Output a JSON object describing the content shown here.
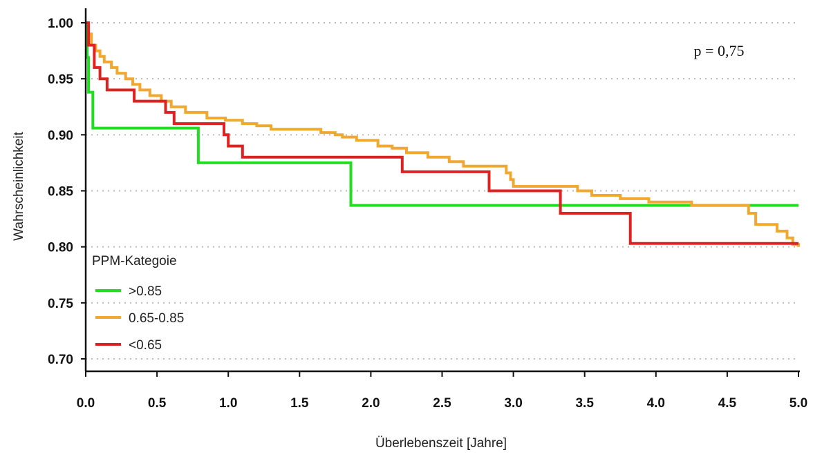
{
  "chart_data": {
    "type": "line",
    "subtype": "kaplan-meier step",
    "xlabel": "Überlebenszeit [Jahre]",
    "ylabel": "Wahrscheinlichkeit",
    "xlim": [
      0,
      5
    ],
    "ylim": [
      0.7,
      1.0
    ],
    "x_ticks": [
      "0.0",
      "0.5",
      "1.0",
      "1.5",
      "2.0",
      "2.5",
      "3.0",
      "3.5",
      "4.0",
      "4.5",
      "5.0"
    ],
    "y_ticks": [
      "0.70",
      "0.75",
      "0.80",
      "0.85",
      "0.90",
      "0.95",
      "1.00"
    ],
    "grid": "horizontal dotted",
    "annotation": "p = 0,75",
    "legend": {
      "title": "PPM-Kategoie",
      "placement": "bottom-left"
    },
    "series": [
      {
        "name": ">0.85",
        "color": "#22dd22",
        "points": [
          [
            0,
            1.0
          ],
          [
            0.01,
            0.969
          ],
          [
            0.02,
            0.938
          ],
          [
            0.05,
            0.906
          ],
          [
            0.79,
            0.875
          ],
          [
            1.86,
            0.837
          ],
          [
            5.0,
            0.837
          ]
        ]
      },
      {
        "name": "0.65-0.85",
        "color": "#f0a830",
        "points": [
          [
            0,
            1.0
          ],
          [
            0.02,
            0.99
          ],
          [
            0.04,
            0.98
          ],
          [
            0.07,
            0.975
          ],
          [
            0.1,
            0.97
          ],
          [
            0.13,
            0.965
          ],
          [
            0.18,
            0.96
          ],
          [
            0.22,
            0.955
          ],
          [
            0.28,
            0.95
          ],
          [
            0.33,
            0.945
          ],
          [
            0.38,
            0.94
          ],
          [
            0.45,
            0.935
          ],
          [
            0.53,
            0.93
          ],
          [
            0.6,
            0.925
          ],
          [
            0.7,
            0.92
          ],
          [
            0.85,
            0.915
          ],
          [
            0.98,
            0.913
          ],
          [
            1.1,
            0.91
          ],
          [
            1.2,
            0.908
          ],
          [
            1.3,
            0.905
          ],
          [
            1.65,
            0.902
          ],
          [
            1.75,
            0.9
          ],
          [
            1.8,
            0.898
          ],
          [
            1.9,
            0.895
          ],
          [
            2.05,
            0.89
          ],
          [
            2.15,
            0.888
          ],
          [
            2.25,
            0.884
          ],
          [
            2.4,
            0.88
          ],
          [
            2.55,
            0.876
          ],
          [
            2.65,
            0.872
          ],
          [
            2.95,
            0.866
          ],
          [
            2.98,
            0.86
          ],
          [
            3.0,
            0.854
          ],
          [
            3.45,
            0.85
          ],
          [
            3.55,
            0.846
          ],
          [
            3.75,
            0.843
          ],
          [
            3.95,
            0.84
          ],
          [
            4.25,
            0.837
          ],
          [
            4.65,
            0.83
          ],
          [
            4.7,
            0.82
          ],
          [
            4.85,
            0.814
          ],
          [
            4.92,
            0.808
          ],
          [
            4.96,
            0.802
          ],
          [
            5.0,
            0.8
          ]
        ]
      },
      {
        "name": "<0.65",
        "color": "#dd2222",
        "points": [
          [
            0,
            1.0
          ],
          [
            0.02,
            0.98
          ],
          [
            0.06,
            0.96
          ],
          [
            0.1,
            0.95
          ],
          [
            0.15,
            0.94
          ],
          [
            0.34,
            0.93
          ],
          [
            0.56,
            0.92
          ],
          [
            0.62,
            0.91
          ],
          [
            0.97,
            0.9
          ],
          [
            1.0,
            0.89
          ],
          [
            1.1,
            0.88
          ],
          [
            2.22,
            0.867
          ],
          [
            2.83,
            0.85
          ],
          [
            3.33,
            0.83
          ],
          [
            3.82,
            0.803
          ],
          [
            5.0,
            0.803
          ]
        ]
      }
    ]
  }
}
